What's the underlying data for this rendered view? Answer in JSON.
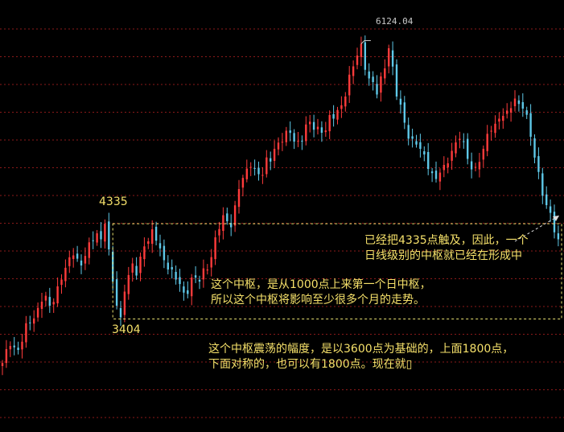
{
  "chart_data": {
    "type": "candlestick",
    "grid": "horizontal dotted",
    "colors": {
      "up": "#ff3b3b",
      "down": "#5ec8e8",
      "grid": "#8b1a1a",
      "annotation": "#f5e06a",
      "box": "#e8e070",
      "background": "#000000"
    },
    "ylim": [
      2800,
      6400
    ],
    "peak": {
      "label": "6124.04",
      "value": 6124.04
    },
    "pivot_high": {
      "label": "4335",
      "value": 4335
    },
    "pivot_low": {
      "label": "3404",
      "value": 3404
    },
    "close_path": [
      {
        "t": 0,
        "v": 2950
      },
      {
        "t": 2,
        "v": 3120
      },
      {
        "t": 4,
        "v": 3080
      },
      {
        "t": 7,
        "v": 3350
      },
      {
        "t": 10,
        "v": 3560
      },
      {
        "t": 12,
        "v": 3520
      },
      {
        "t": 15,
        "v": 3780
      },
      {
        "t": 18,
        "v": 4020
      },
      {
        "t": 20,
        "v": 3920
      },
      {
        "t": 22,
        "v": 4150
      },
      {
        "t": 24,
        "v": 4240
      },
      {
        "t": 25,
        "v": 4180
      },
      {
        "t": 26,
        "v": 4335
      },
      {
        "t": 27,
        "v": 4080
      },
      {
        "t": 28,
        "v": 3760
      },
      {
        "t": 29,
        "v": 3520
      },
      {
        "t": 30,
        "v": 3404
      },
      {
        "t": 31,
        "v": 3660
      },
      {
        "t": 33,
        "v": 3940
      },
      {
        "t": 34,
        "v": 3820
      },
      {
        "t": 36,
        "v": 4110
      },
      {
        "t": 38,
        "v": 4280
      },
      {
        "t": 40,
        "v": 4090
      },
      {
        "t": 42,
        "v": 3880
      },
      {
        "t": 44,
        "v": 3780
      },
      {
        "t": 46,
        "v": 3650
      },
      {
        "t": 48,
        "v": 3800
      },
      {
        "t": 50,
        "v": 3760
      },
      {
        "t": 52,
        "v": 3880
      },
      {
        "t": 54,
        "v": 4200
      },
      {
        "t": 56,
        "v": 4420
      },
      {
        "t": 58,
        "v": 4300
      },
      {
        "t": 60,
        "v": 4680
      },
      {
        "t": 63,
        "v": 4900
      },
      {
        "t": 66,
        "v": 4820
      },
      {
        "t": 69,
        "v": 5080
      },
      {
        "t": 72,
        "v": 5260
      },
      {
        "t": 75,
        "v": 5160
      },
      {
        "t": 78,
        "v": 5350
      },
      {
        "t": 81,
        "v": 5240
      },
      {
        "t": 84,
        "v": 5380
      },
      {
        "t": 87,
        "v": 5600
      },
      {
        "t": 89,
        "v": 5900
      },
      {
        "t": 91,
        "v": 6124
      },
      {
        "t": 93,
        "v": 5780
      },
      {
        "t": 95,
        "v": 5620
      },
      {
        "t": 97,
        "v": 5880
      },
      {
        "t": 98,
        "v": 6080
      },
      {
        "t": 100,
        "v": 5600
      },
      {
        "t": 102,
        "v": 5340
      },
      {
        "t": 104,
        "v": 5180
      },
      {
        "t": 106,
        "v": 5080
      },
      {
        "t": 108,
        "v": 4880
      },
      {
        "t": 110,
        "v": 4780
      },
      {
        "t": 112,
        "v": 4920
      },
      {
        "t": 114,
        "v": 5060
      },
      {
        "t": 116,
        "v": 5180
      },
      {
        "t": 118,
        "v": 4980
      },
      {
        "t": 120,
        "v": 4900
      },
      {
        "t": 122,
        "v": 5080
      },
      {
        "t": 124,
        "v": 5260
      },
      {
        "t": 126,
        "v": 5380
      },
      {
        "t": 128,
        "v": 5460
      },
      {
        "t": 130,
        "v": 5580
      },
      {
        "t": 132,
        "v": 5480
      },
      {
        "t": 134,
        "v": 5200
      },
      {
        "t": 136,
        "v": 4850
      },
      {
        "t": 138,
        "v": 4520
      },
      {
        "t": 140,
        "v": 4250
      },
      {
        "t": 141,
        "v": 4180
      }
    ],
    "annotations": {
      "touch_line1": "已经把4335点触及，因此，一个",
      "touch_line2": "日线级别的中枢就已经在形成中",
      "pivot_line1": "这个中枢，是从1000点上来第一个日中枢，",
      "pivot_line2": "所以这个中枢将影响至少很多个月的走势。",
      "amp_line1": "这个中枢震荡的幅度，是以3600点为基础的，上面1800点，",
      "amp_line2": "下面对称的，也可以有1800点。现在就▯"
    }
  }
}
